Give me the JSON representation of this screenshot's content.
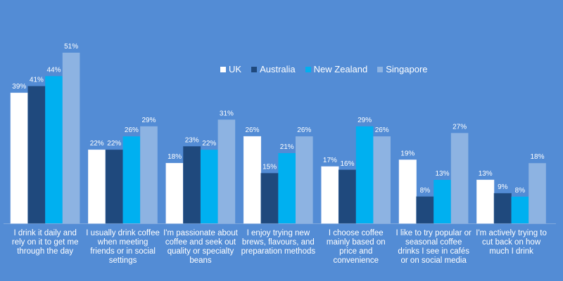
{
  "chart_data": {
    "type": "bar",
    "title": "",
    "xlabel": "",
    "ylabel": "",
    "ylim": [
      0,
      51
    ],
    "grid": false,
    "legend_position": "top-center",
    "categories": [
      "I drink it daily and rely on it to get me through the day",
      "I usually drink coffee when meeting friends or in social settings",
      "I'm passionate about coffee and seek out quality or specialty beans",
      "I enjoy trying new brews, flavours, and preparation methods",
      "I choose coffee mainly based on price and convenience",
      "I like to try popular or seasonal coffee drinks I see in cafés or on social media",
      "I'm actively trying to cut back on how much I drink"
    ],
    "series": [
      {
        "name": "UK",
        "color": "#FFFFFF",
        "values": [
          39,
          22,
          18,
          26,
          17,
          19,
          13
        ]
      },
      {
        "name": "Australia",
        "color": "#1F497D",
        "values": [
          41,
          22,
          23,
          15,
          16,
          8,
          9
        ]
      },
      {
        "name": "New Zealand",
        "color": "#00B0F0",
        "values": [
          44,
          26,
          22,
          21,
          29,
          13,
          8
        ]
      },
      {
        "name": "Singapore",
        "color": "#8DB3E2",
        "values": [
          51,
          29,
          31,
          26,
          26,
          27,
          18
        ]
      }
    ],
    "value_suffix": "%"
  }
}
